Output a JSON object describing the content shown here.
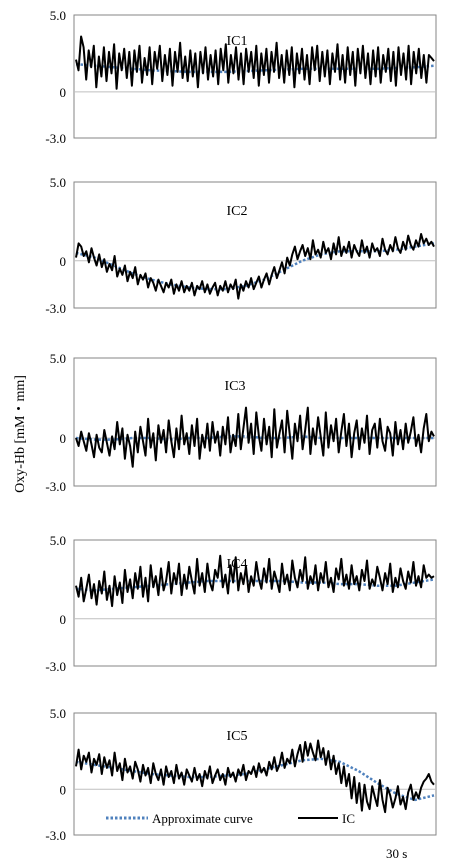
{
  "figure": {
    "ylabel": "Oxy-Hb [mM・mm]",
    "x_scale_label": "30 s",
    "legend": [
      {
        "label": "Approximate curve",
        "style": "dotted",
        "color": "#4f81bd"
      },
      {
        "label": "IC",
        "style": "solid",
        "color": "#000000"
      }
    ]
  },
  "chart_data": [
    {
      "type": "line",
      "title": "IC1",
      "ylim": [
        -3.0,
        5.0
      ],
      "yticks": [
        "5.0",
        "0",
        "-3.0"
      ],
      "x_range": [
        0,
        140
      ],
      "series": [
        {
          "name": "Approximate curve",
          "color": "#4f81bd",
          "values": [
            1.8,
            1.7,
            1.6,
            1.5,
            1.4,
            1.35,
            1.3,
            1.3,
            1.3,
            1.35,
            1.4,
            1.45,
            1.5,
            1.5,
            1.5,
            1.5,
            1.5,
            1.55,
            1.6,
            1.7
          ]
        },
        {
          "name": "IC",
          "color": "#000000",
          "values": [
            2.1,
            1.4,
            3.6,
            2.9,
            0.8,
            2.7,
            1.6,
            3.0,
            0.3,
            2.3,
            1.0,
            2.9,
            0.7,
            2.6,
            1.2,
            3.1,
            0.2,
            2.5,
            1.4,
            2.8,
            0.9,
            2.6,
            0.4,
            2.7,
            1.3,
            3.0,
            0.6,
            2.2,
            1.1,
            2.9,
            0.5,
            2.6,
            1.5,
            3.0,
            0.7,
            2.4,
            1.1,
            2.8,
            0.4,
            2.6,
            1.3,
            3.2,
            0.9,
            2.3,
            0.7,
            2.7,
            1.0,
            2.5,
            0.3,
            2.6,
            1.2,
            2.9,
            0.8,
            2.4,
            1.0,
            2.7,
            0.5,
            2.8,
            1.4,
            3.1,
            0.6,
            2.4,
            1.2,
            2.9,
            0.8,
            2.5,
            0.5,
            2.8,
            1.3,
            2.6,
            0.9,
            3.0,
            0.4,
            2.5,
            1.1,
            2.8,
            0.6,
            2.6,
            1.3,
            3.2,
            0.9,
            2.4,
            0.6,
            2.7,
            1.1,
            2.9,
            0.3,
            2.5,
            1.2,
            2.8,
            0.8,
            2.4,
            0.5,
            2.9,
            1.4,
            3.0,
            0.7,
            2.6,
            1.0,
            2.7,
            0.5,
            2.5,
            1.3,
            3.1,
            0.8,
            2.4,
            0.6,
            2.9,
            1.1,
            2.6,
            0.4,
            2.8,
            1.2,
            3.0,
            0.9,
            2.5,
            0.5,
            2.7,
            1.0,
            2.9,
            0.6,
            2.4,
            1.3,
            2.8,
            0.7,
            2.6,
            0.4,
            2.9,
            1.1,
            2.5,
            0.8,
            3.0,
            0.5,
            2.6,
            1.2,
            2.8,
            0.9,
            2.4,
            0.6,
            2.4,
            2.2,
            2.0
          ]
        }
      ]
    },
    {
      "type": "line",
      "title": "IC2",
      "ylim": [
        -3.0,
        5.0
      ],
      "yticks": [
        "5.0",
        "0",
        "-3.0"
      ],
      "x_range": [
        0,
        140
      ],
      "series": [
        {
          "name": "Approximate curve",
          "color": "#4f81bd",
          "values": [
            0.5,
            0.2,
            -0.3,
            -0.8,
            -1.2,
            -1.5,
            -1.7,
            -1.8,
            -1.8,
            -1.6,
            -1.2,
            -0.6,
            0.0,
            0.4,
            0.6,
            0.6,
            0.6,
            0.7,
            0.9,
            1.1
          ]
        },
        {
          "name": "IC",
          "color": "#000000",
          "values": [
            0.2,
            1.1,
            0.9,
            0.3,
            0.6,
            -0.1,
            0.8,
            0.2,
            -0.3,
            0.4,
            -0.4,
            0.1,
            -0.7,
            -0.2,
            -0.6,
            0.3,
            -1.0,
            -0.5,
            -0.9,
            -0.3,
            -1.3,
            -0.7,
            -1.1,
            -0.4,
            -1.5,
            -0.9,
            -1.2,
            -0.8,
            -1.7,
            -1.1,
            -1.4,
            -1.9,
            -1.2,
            -1.6,
            -2.0,
            -1.4,
            -1.7,
            -1.2,
            -2.1,
            -1.5,
            -1.9,
            -1.3,
            -2.0,
            -1.6,
            -1.9,
            -1.4,
            -2.2,
            -1.6,
            -1.8,
            -1.3,
            -2.0,
            -1.5,
            -2.1,
            -1.7,
            -1.4,
            -2.2,
            -1.6,
            -1.9,
            -1.3,
            -2.0,
            -1.5,
            -1.8,
            -1.2,
            -2.4,
            -1.5,
            -1.9,
            -1.3,
            -1.7,
            -1.1,
            -1.8,
            -1.4,
            -1.0,
            -1.7,
            -1.2,
            -0.8,
            -1.5,
            -0.9,
            -0.4,
            -1.1,
            -0.6,
            -0.1,
            -0.8,
            0.2,
            -0.3,
            0.4,
            0.9,
            0.1,
            0.6,
            1.0,
            0.3,
            0.8,
            0.1,
            1.3,
            0.4,
            0.7,
            0.2,
            1.2,
            0.5,
            0.8,
            0.1,
            1.1,
            0.4,
            1.5,
            0.3,
            0.9,
            0.5,
            1.2,
            0.2,
            1.0,
            0.6,
            0.3,
            1.3,
            0.5,
            0.9,
            0.2,
            1.1,
            0.6,
            0.8,
            0.3,
            1.4,
            0.7,
            0.4,
            1.0,
            0.6,
            1.5,
            0.8,
            0.5,
            1.2,
            0.7,
            1.6,
            1.0,
            0.7,
            1.3,
            0.9,
            1.7,
            1.1,
            1.4,
            1.0,
            1.2,
            0.9
          ]
        }
      ]
    },
    {
      "type": "line",
      "title": "IC3",
      "ylim": [
        -3.0,
        5.0
      ],
      "yticks": [
        "5.0",
        "0",
        "-3.0"
      ],
      "x_range": [
        0,
        140
      ],
      "series": [
        {
          "name": "Approximate curve",
          "color": "#4f81bd",
          "values": [
            0.0,
            -0.1,
            -0.1,
            0.0,
            0.0,
            -0.1,
            0.0,
            0.0,
            0.1,
            0.1,
            0.0,
            0.0,
            0.1,
            0.0,
            0.0,
            0.0,
            0.0,
            0.0,
            0.0,
            0.0
          ]
        },
        {
          "name": "IC",
          "color": "#000000",
          "values": [
            0.0,
            -0.5,
            0.4,
            -0.2,
            -0.8,
            0.3,
            -0.4,
            -1.2,
            0.2,
            -0.6,
            -0.9,
            0.5,
            -0.3,
            -1.1,
            0.1,
            -0.7,
            1.0,
            -0.4,
            0.6,
            -1.3,
            0.2,
            -0.5,
            -1.8,
            0.4,
            -0.9,
            0.7,
            -0.2,
            -1.1,
            1.2,
            -0.6,
            0.3,
            -1.4,
            0.8,
            -0.3,
            0.5,
            -0.9,
            1.1,
            -0.2,
            -1.2,
            0.6,
            -0.7,
            1.4,
            -0.4,
            0.3,
            -1.0,
            0.8,
            -0.5,
            1.2,
            -1.3,
            0.2,
            -0.6,
            0.9,
            -0.8,
            1.0,
            -0.3,
            0.4,
            -1.1,
            0.7,
            -0.4,
            1.3,
            -0.9,
            0.2,
            -0.5,
            1.5,
            -0.7,
            0.6,
            1.9,
            -0.3,
            0.9,
            -1.0,
            1.6,
            0.1,
            -0.8,
            1.2,
            -0.4,
            0.7,
            -1.2,
            1.8,
            -0.6,
            0.3,
            1.1,
            -0.9,
            1.7,
            0.2,
            -1.3,
            0.9,
            -0.2,
            1.4,
            -0.7,
            0.5,
            1.9,
            -1.0,
            0.6,
            -0.4,
            1.3,
            0.1,
            -1.1,
            1.6,
            -0.6,
            0.8,
            -0.2,
            1.2,
            -0.9,
            0.4,
            1.5,
            -0.5,
            0.9,
            -1.2,
            0.3,
            1.1,
            -0.7,
            0.6,
            -0.3,
            1.4,
            -1.0,
            0.5,
            0.9,
            -0.6,
            1.2,
            -0.2,
            -0.8,
            0.7,
            0.3,
            -1.1,
            1.0,
            -0.4,
            0.5,
            -0.7,
            0.9,
            -0.3,
            0.4,
            1.3,
            -0.5,
            0.2,
            -0.9,
            0.6,
            1.5,
            -0.2,
            0.4,
            0.1
          ]
        }
      ]
    },
    {
      "type": "line",
      "title": "IC4",
      "ylim": [
        -3.0,
        5.0
      ],
      "yticks": [
        "5.0",
        "0",
        "-3.0"
      ],
      "x_range": [
        0,
        140
      ],
      "series": [
        {
          "name": "Approximate curve",
          "color": "#4f81bd",
          "values": [
            1.9,
            1.8,
            1.9,
            2.0,
            2.1,
            2.2,
            2.3,
            2.4,
            2.4,
            2.4,
            2.4,
            2.4,
            2.3,
            2.3,
            2.2,
            2.2,
            2.1,
            2.1,
            2.3,
            2.5
          ]
        },
        {
          "name": "IC",
          "color": "#000000",
          "values": [
            2.1,
            1.4,
            2.6,
            1.1,
            1.9,
            2.8,
            1.3,
            2.2,
            0.9,
            2.4,
            1.6,
            3.0,
            1.2,
            2.1,
            0.8,
            2.7,
            1.5,
            2.3,
            1.0,
            3.1,
            1.7,
            2.5,
            1.3,
            2.9,
            1.9,
            3.3,
            1.4,
            2.6,
            1.1,
            3.4,
            2.0,
            2.7,
            1.5,
            3.2,
            1.8,
            2.4,
            3.6,
            1.6,
            2.9,
            2.2,
            3.5,
            1.5,
            2.8,
            1.9,
            3.3,
            2.4,
            1.6,
            3.8,
            2.1,
            2.9,
            1.7,
            3.5,
            2.3,
            1.8,
            3.1,
            2.6,
            4.0,
            2.0,
            2.8,
            1.6,
            3.4,
            2.3,
            3.9,
            1.8,
            2.9,
            2.2,
            3.3,
            1.7,
            2.7,
            2.1,
            3.6,
            2.5,
            1.9,
            3.2,
            2.3,
            3.8,
            1.9,
            3.0,
            2.4,
            1.7,
            3.5,
            2.2,
            2.8,
            1.8,
            3.7,
            2.6,
            2.0,
            3.1,
            2.4,
            3.9,
            1.9,
            2.7,
            2.2,
            3.4,
            1.8,
            2.9,
            2.3,
            3.6,
            2.0,
            2.6,
            1.7,
            3.2,
            2.5,
            3.8,
            2.1,
            2.8,
            1.9,
            3.4,
            2.2,
            2.7,
            1.8,
            3.1,
            2.4,
            3.7,
            1.9,
            2.5,
            2.1,
            3.3,
            2.6,
            1.8,
            2.9,
            2.2,
            3.5,
            1.7,
            2.6,
            2.0,
            3.2,
            2.4,
            1.9,
            3.0,
            2.3,
            3.6,
            2.1,
            2.7,
            2.0,
            3.4,
            2.6,
            2.8,
            2.6,
            2.7
          ]
        }
      ]
    },
    {
      "type": "line",
      "title": "IC5",
      "ylim": [
        -3.0,
        5.0
      ],
      "yticks": [
        "5.0",
        "0",
        "-3.0"
      ],
      "x_range": [
        0,
        140
      ],
      "series": [
        {
          "name": "Approximate curve",
          "color": "#4f81bd",
          "values": [
            1.8,
            1.6,
            1.4,
            1.2,
            1.0,
            0.9,
            0.8,
            0.8,
            0.9,
            1.0,
            1.3,
            1.6,
            1.9,
            2.0,
            1.8,
            1.2,
            0.4,
            -0.3,
            -0.7,
            -0.4
          ]
        },
        {
          "name": "IC",
          "color": "#000000",
          "values": [
            1.5,
            2.6,
            1.3,
            2.2,
            1.8,
            2.4,
            1.1,
            2.0,
            1.6,
            2.3,
            1.0,
            2.1,
            1.4,
            1.9,
            0.9,
            2.4,
            1.2,
            1.7,
            0.6,
            2.0,
            1.1,
            1.5,
            0.7,
            1.8,
            1.3,
            0.5,
            1.6,
            0.9,
            1.4,
            0.4,
            1.7,
            1.0,
            0.6,
            1.3,
            0.3,
            1.5,
            0.8,
            1.2,
            0.4,
            1.6,
            0.7,
            1.1,
            0.3,
            1.3,
            0.9,
            0.5,
            1.4,
            0.6,
            1.0,
            0.2,
            1.2,
            0.7,
            1.5,
            0.4,
            0.9,
            1.3,
            0.6,
            1.0,
            0.3,
            1.4,
            0.8,
            1.1,
            0.5,
            1.3,
            0.9,
            1.6,
            0.6,
            1.2,
            1.0,
            1.5,
            0.8,
            1.7,
            1.1,
            1.4,
            0.9,
            1.8,
            1.3,
            2.1,
            1.2,
            1.6,
            2.4,
            1.4,
            2.0,
            1.7,
            2.6,
            1.5,
            2.3,
            2.9,
            1.8,
            3.1,
            2.2,
            3.0,
            2.4,
            1.9,
            3.2,
            2.1,
            2.7,
            1.6,
            2.5,
            1.3,
            2.2,
            1.0,
            1.7,
            0.4,
            1.5,
            0.2,
            1.0,
            -0.6,
            0.8,
            -0.9,
            0.4,
            -1.4,
            0.3,
            -0.8,
            -1.3,
            0.2,
            -0.5,
            -1.1,
            0.6,
            -0.7,
            -1.5,
            0.1,
            -0.4,
            -1.2,
            -0.6,
            0.2,
            -1.0,
            -0.5,
            -1.3,
            -0.2,
            0.3,
            -0.7,
            -0.2,
            -0.6,
            0.1,
            0.5,
            0.7,
            1.0,
            0.5,
            0.3
          ]
        }
      ]
    }
  ]
}
